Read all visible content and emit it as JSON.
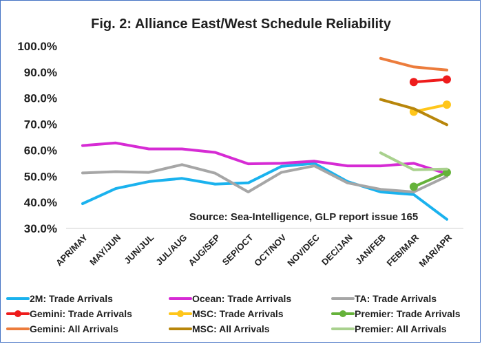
{
  "chart_data": {
    "type": "line",
    "title": "Fig. 2: Alliance East/West  Schedule Reliability",
    "annotation": "Source: Sea-Intelligence, GLP report issue 165",
    "categories": [
      "APR/MAY",
      "MAY/JUN",
      "JUN/JUL",
      "JUL/AUG",
      "AUG/SEP",
      "SEP/OCT",
      "OCT/NOV",
      "NOV/DEC",
      "DEC/JAN",
      "JAN/FEB",
      "FEB/MAR",
      "MAR/APR"
    ],
    "ylim": [
      30,
      100
    ],
    "yticks": [
      30,
      40,
      50,
      60,
      70,
      80,
      90,
      100
    ],
    "ytick_labels": [
      "30.0%",
      "40.0%",
      "50.0%",
      "60.0%",
      "70.0%",
      "80.0%",
      "90.0%",
      "100.0%"
    ],
    "legend_position": "bottom",
    "grid": false,
    "series": [
      {
        "name": "2M: Trade Arrivals",
        "color": "#1ab2ee",
        "width": 4,
        "marker": false,
        "values": [
          39.5,
          45.3,
          48.0,
          49.2,
          47.0,
          47.5,
          53.8,
          55.0,
          48.0,
          44.0,
          43.0,
          33.5
        ]
      },
      {
        "name": "Ocean: Trade Arrivals",
        "color": "#d62bd4",
        "width": 4,
        "marker": false,
        "values": [
          61.8,
          62.8,
          60.5,
          60.5,
          59.2,
          54.8,
          55.0,
          55.8,
          54.0,
          54.0,
          55.0,
          51.0
        ]
      },
      {
        "name": "TA: Trade Arrivals",
        "color": "#a6a6a6",
        "width": 4,
        "marker": false,
        "values": [
          51.3,
          51.8,
          51.5,
          54.5,
          51.2,
          44.0,
          51.5,
          54.0,
          47.5,
          45.0,
          44.0,
          50.0
        ]
      },
      {
        "name": "Gemini: Trade Arrivals",
        "color": "#ee1c1c",
        "width": 4,
        "marker": true,
        "values": [
          null,
          null,
          null,
          null,
          null,
          null,
          null,
          null,
          null,
          null,
          86.2,
          87.2
        ]
      },
      {
        "name": "MSC: Trade Arrivals",
        "color": "#ffc61a",
        "width": 4,
        "marker": true,
        "values": [
          null,
          null,
          null,
          null,
          null,
          null,
          null,
          null,
          null,
          null,
          74.8,
          77.5
        ]
      },
      {
        "name": "Premier: Trade Arrivals",
        "color": "#65b23a",
        "width": 4,
        "marker": true,
        "values": [
          null,
          null,
          null,
          null,
          null,
          null,
          null,
          null,
          null,
          null,
          46.0,
          51.5
        ]
      },
      {
        "name": "Gemini: All Arrivals",
        "color": "#ec7c3c",
        "width": 4,
        "marker": false,
        "values": [
          null,
          null,
          null,
          null,
          null,
          null,
          null,
          null,
          null,
          95.3,
          92.0,
          90.8
        ]
      },
      {
        "name": "MSC: All Arrivals",
        "color": "#b8860b",
        "width": 4,
        "marker": false,
        "values": [
          null,
          null,
          null,
          null,
          null,
          null,
          null,
          null,
          null,
          79.5,
          76.0,
          69.8
        ]
      },
      {
        "name": "Premier: All Arrivals",
        "color": "#a9d18e",
        "width": 4,
        "marker": false,
        "values": [
          null,
          null,
          null,
          null,
          null,
          null,
          null,
          null,
          null,
          59.0,
          52.5,
          52.8
        ]
      }
    ]
  }
}
